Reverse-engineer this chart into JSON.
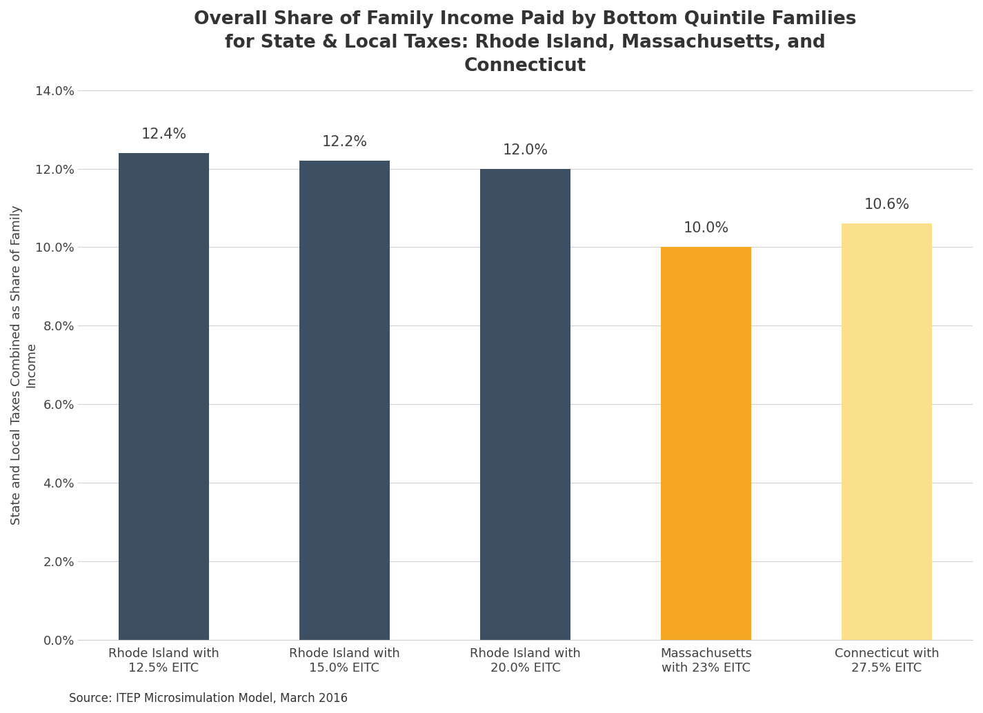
{
  "title": "Overall Share of Family Income Paid by Bottom Quintile Families\nfor State & Local Taxes: Rhode Island, Massachusetts, and\nConnecticut",
  "ylabel": "State and Local Taxes Combined as Share of Family\nIncome",
  "categories": [
    "Rhode Island with\n12.5% EITC",
    "Rhode Island with\n15.0% EITC",
    "Rhode Island with\n20.0% EITC",
    "Massachusetts\nwith 23% EITC",
    "Connecticut with\n27.5% EITC"
  ],
  "values": [
    0.124,
    0.122,
    0.12,
    0.1,
    0.106
  ],
  "bar_colors": [
    "#3d4f63",
    "#3d4f63",
    "#3d4f63",
    "#F5A623",
    "#FAE08A"
  ],
  "value_labels": [
    "12.4%",
    "12.2%",
    "12.0%",
    "10.0%",
    "10.6%"
  ],
  "ylim": [
    0,
    0.14
  ],
  "yticks": [
    0.0,
    0.02,
    0.04,
    0.06,
    0.08,
    0.1,
    0.12,
    0.14
  ],
  "source_text": "Source: ITEP Microsimulation Model, March 2016",
  "background_color": "#ffffff",
  "plot_bg_color": "#ffffff",
  "grid_color": "#d0d0d0",
  "title_fontsize": 19,
  "ylabel_fontsize": 13,
  "tick_fontsize": 13,
  "label_fontsize": 15,
  "source_fontsize": 12,
  "bar_width": 0.5
}
